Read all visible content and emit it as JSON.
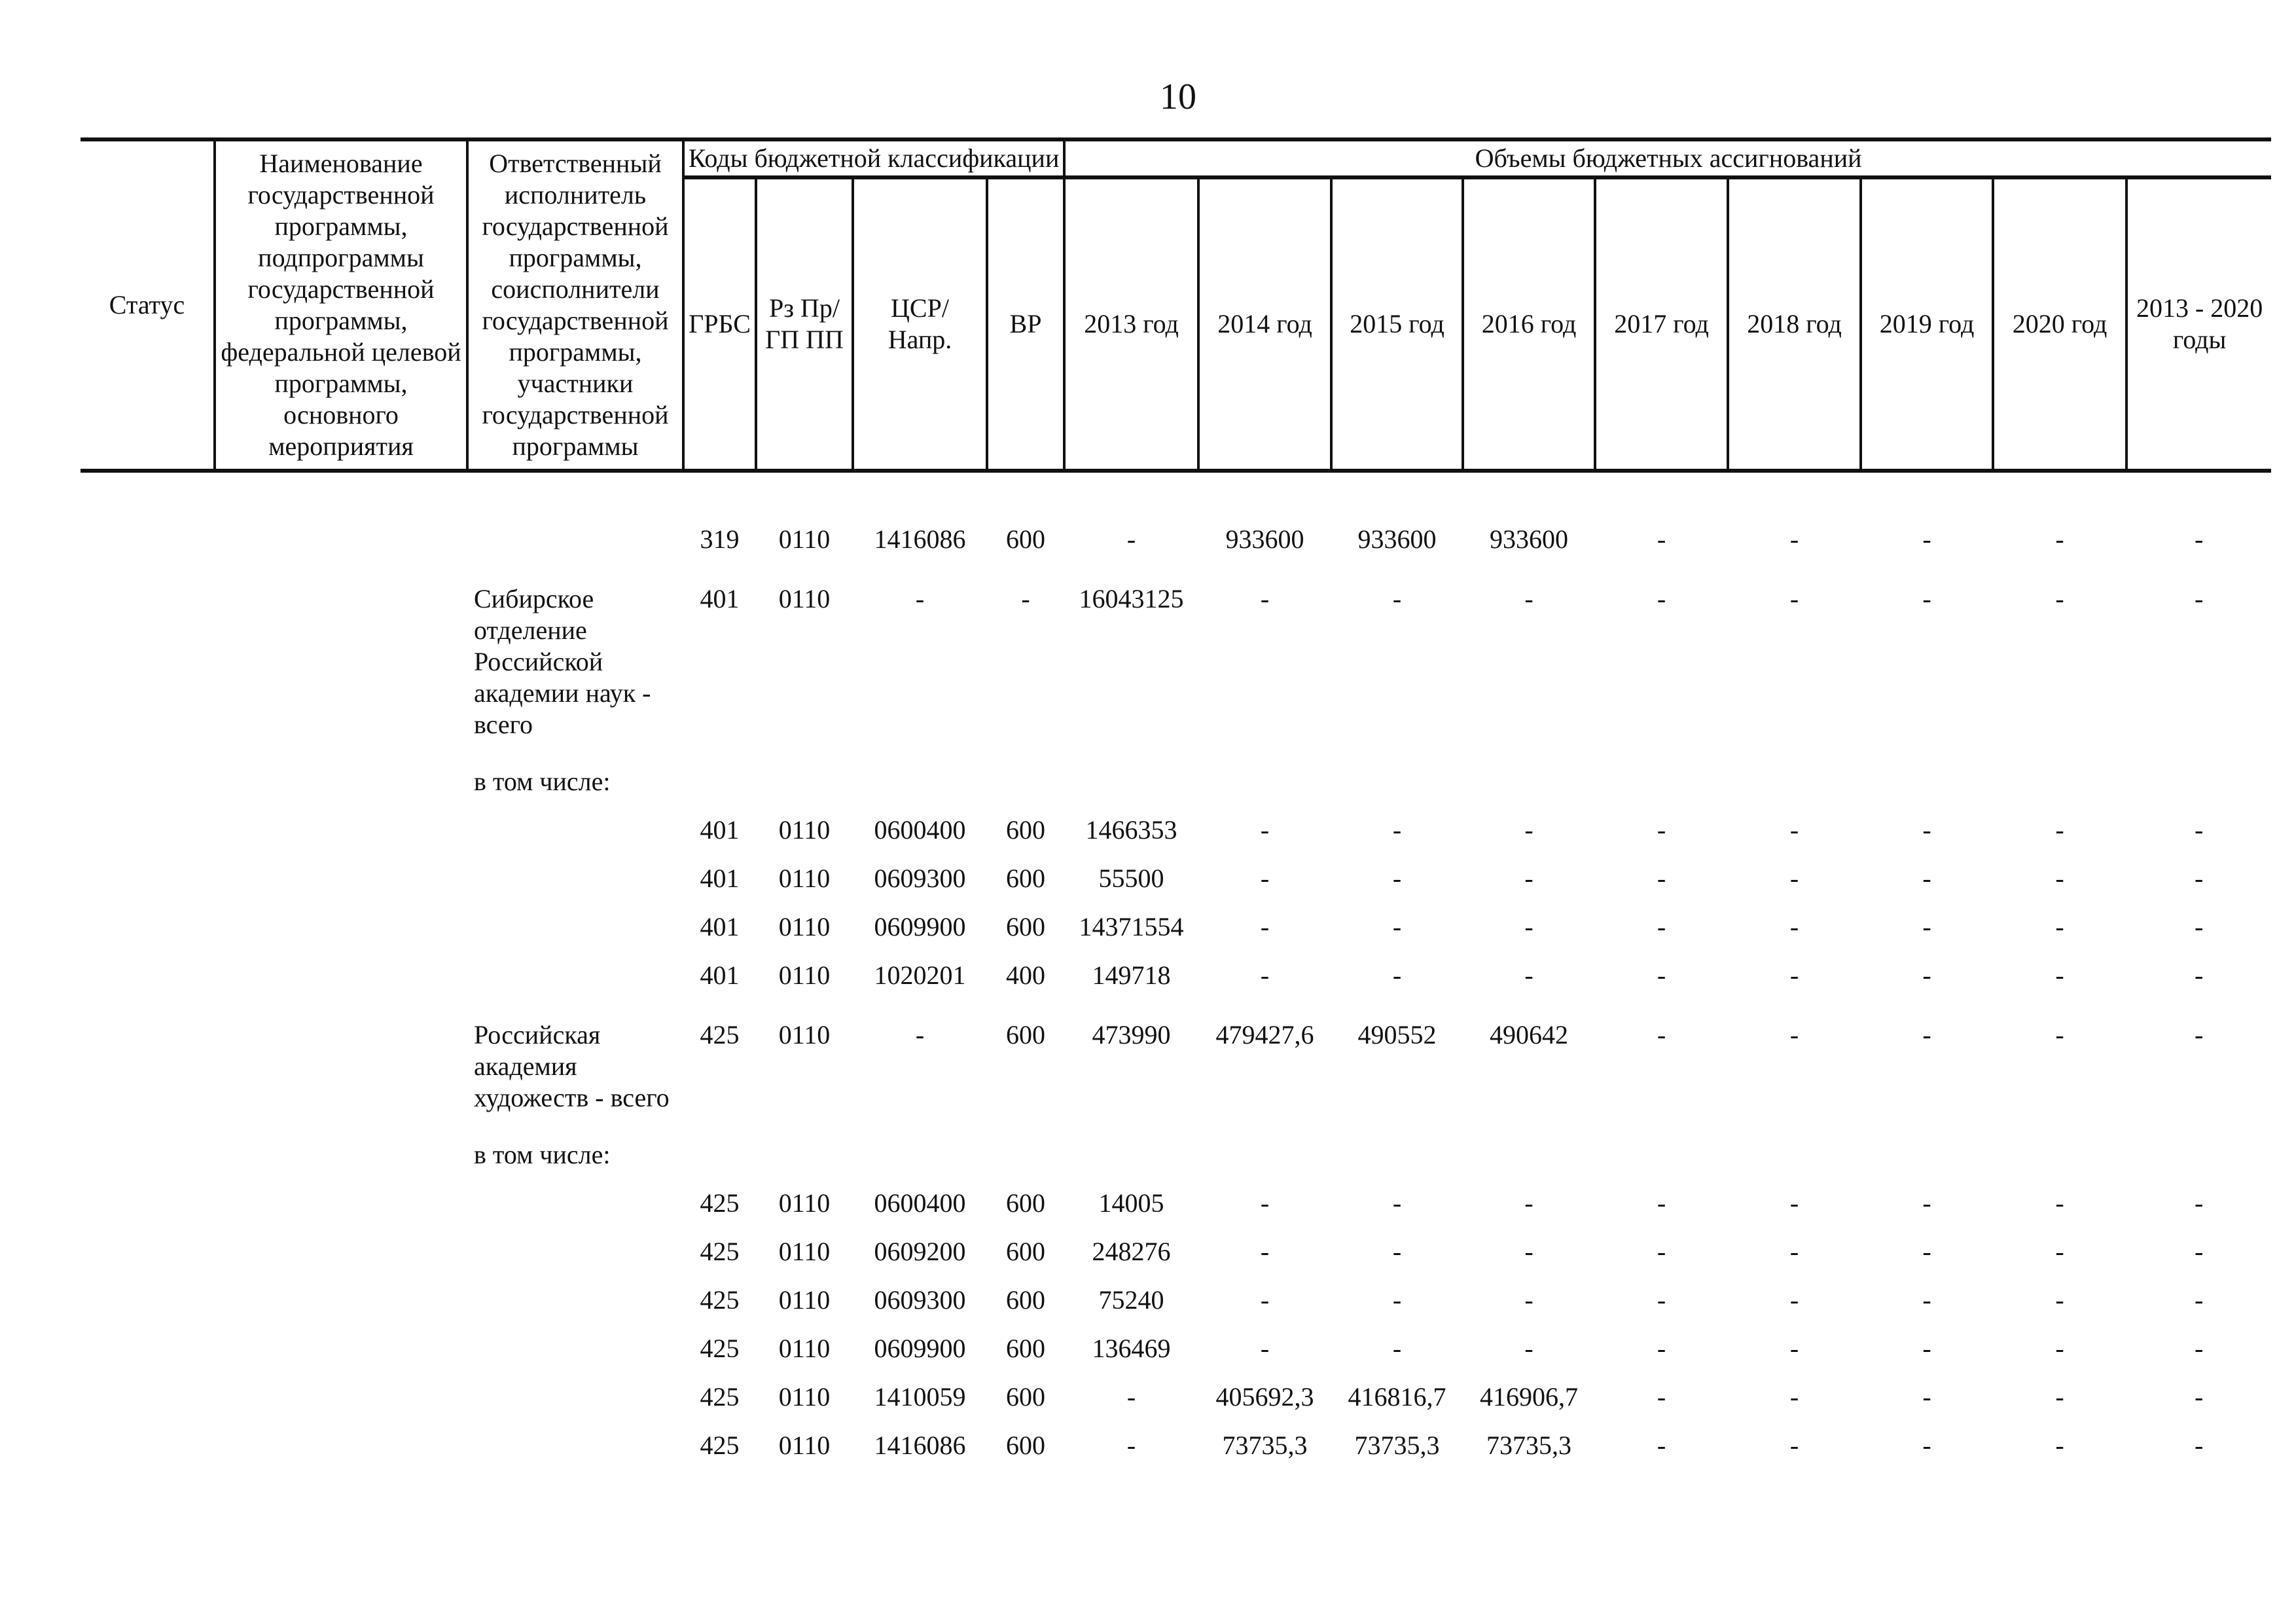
{
  "page": {
    "number": "10"
  },
  "table": {
    "header": {
      "status": "Статус",
      "program_name": "Наименование государственной программы, подпрограммы государственной программы, федеральной целевой программы, основного мероприятия",
      "responsible": "Ответственный исполнитель государственной программы, соисполнители государственной программы, участники государственной программы",
      "codes_group": "Коды бюджетной классификации",
      "volumes_group": "Объемы бюджетных ассигнований",
      "grbs": "ГРБС",
      "rz_pr": "Рз Пр/\nГП ПП",
      "csr": "ЦСР/\nНапр.",
      "vr": "ВР",
      "years": [
        "2013 год",
        "2014 год",
        "2015 год",
        "2016 год",
        "2017 год",
        "2018 год",
        "2019 год",
        "2020 год"
      ],
      "total": "2013 - 2020 годы"
    },
    "rows": [
      {
        "type": "codes",
        "cells": [
          "",
          "",
          "",
          "319",
          "0110",
          "1416086",
          "600",
          "-",
          "933600",
          "933600",
          "933600",
          "-",
          "-",
          "-",
          "-",
          "-"
        ]
      },
      {
        "type": "org",
        "cells": [
          "",
          "",
          "Сибирское отделение Российской академии наук - всего",
          "401",
          "0110",
          "-",
          "-",
          "16043125",
          "-",
          "-",
          "-",
          "-",
          "-",
          "-",
          "-",
          "-"
        ]
      },
      {
        "type": "sub",
        "cells": [
          "",
          "",
          "в том числе:",
          "",
          "",
          "",
          "",
          "",
          "",
          "",
          "",
          "",
          "",
          "",
          "",
          ""
        ]
      },
      {
        "type": "codes",
        "cells": [
          "",
          "",
          "",
          "401",
          "0110",
          "0600400",
          "600",
          "1466353",
          "-",
          "-",
          "-",
          "-",
          "-",
          "-",
          "-",
          "-"
        ]
      },
      {
        "type": "codes",
        "cells": [
          "",
          "",
          "",
          "401",
          "0110",
          "0609300",
          "600",
          "55500",
          "-",
          "-",
          "-",
          "-",
          "-",
          "-",
          "-",
          "-"
        ]
      },
      {
        "type": "codes",
        "cells": [
          "",
          "",
          "",
          "401",
          "0110",
          "0609900",
          "600",
          "14371554",
          "-",
          "-",
          "-",
          "-",
          "-",
          "-",
          "-",
          "-"
        ]
      },
      {
        "type": "codes",
        "cells": [
          "",
          "",
          "",
          "401",
          "0110",
          "1020201",
          "400",
          "149718",
          "-",
          "-",
          "-",
          "-",
          "-",
          "-",
          "-",
          "-"
        ]
      },
      {
        "type": "org",
        "cells": [
          "",
          "",
          "Российская академия художеств - всего",
          "425",
          "0110",
          "-",
          "600",
          "473990",
          "479427,6",
          "490552",
          "490642",
          "-",
          "-",
          "-",
          "-",
          "-"
        ]
      },
      {
        "type": "sub",
        "cells": [
          "",
          "",
          "в том числе:",
          "",
          "",
          "",
          "",
          "",
          "",
          "",
          "",
          "",
          "",
          "",
          "",
          ""
        ]
      },
      {
        "type": "codes",
        "cells": [
          "",
          "",
          "",
          "425",
          "0110",
          "0600400",
          "600",
          "14005",
          "-",
          "-",
          "-",
          "-",
          "-",
          "-",
          "-",
          "-"
        ]
      },
      {
        "type": "codes",
        "cells": [
          "",
          "",
          "",
          "425",
          "0110",
          "0609200",
          "600",
          "248276",
          "-",
          "-",
          "-",
          "-",
          "-",
          "-",
          "-",
          "-"
        ]
      },
      {
        "type": "codes",
        "cells": [
          "",
          "",
          "",
          "425",
          "0110",
          "0609300",
          "600",
          "75240",
          "-",
          "-",
          "-",
          "-",
          "-",
          "-",
          "-",
          "-"
        ]
      },
      {
        "type": "codes",
        "cells": [
          "",
          "",
          "",
          "425",
          "0110",
          "0609900",
          "600",
          "136469",
          "-",
          "-",
          "-",
          "-",
          "-",
          "-",
          "-",
          "-"
        ]
      },
      {
        "type": "codes",
        "cells": [
          "",
          "",
          "",
          "425",
          "0110",
          "1410059",
          "600",
          "-",
          "405692,3",
          "416816,7",
          "416906,7",
          "-",
          "-",
          "-",
          "-",
          "-"
        ]
      },
      {
        "type": "codes",
        "cells": [
          "",
          "",
          "",
          "425",
          "0110",
          "1416086",
          "600",
          "-",
          "73735,3",
          "73735,3",
          "73735,3",
          "-",
          "-",
          "-",
          "-",
          "-"
        ]
      }
    ]
  }
}
